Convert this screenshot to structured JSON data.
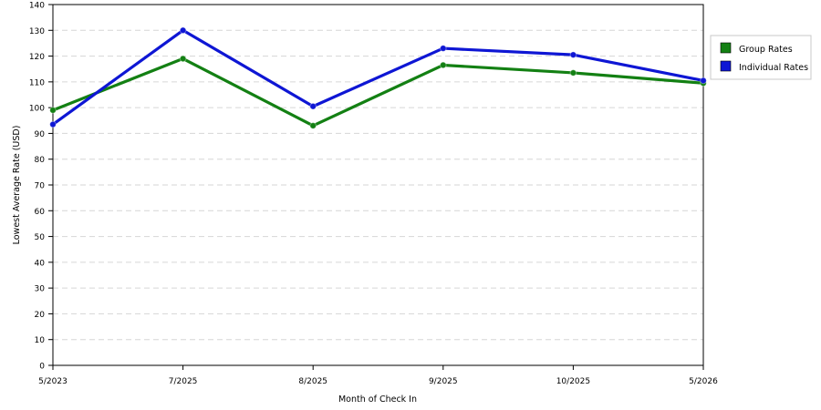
{
  "chart_data": {
    "type": "line",
    "title": "",
    "xlabel": "Month of Check In",
    "ylabel": "Lowest Average Rate (USD)",
    "categories": [
      "5/2023",
      "7/2025",
      "8/2025",
      "9/2025",
      "10/2025",
      "5/2026"
    ],
    "ylim": [
      0,
      140
    ],
    "yticks": [
      0,
      10,
      20,
      30,
      40,
      50,
      60,
      70,
      80,
      90,
      100,
      110,
      120,
      130,
      140
    ],
    "grid": true,
    "legend_position": "top-right",
    "series": [
      {
        "name": "Group Rates",
        "color": "#138013",
        "values": [
          99,
          119,
          93,
          116.5,
          113.5,
          109.5
        ]
      },
      {
        "name": "Individual Rates",
        "color": "#0e16d4",
        "values": [
          93.5,
          130,
          100.5,
          123,
          120.5,
          110.5
        ]
      }
    ]
  }
}
